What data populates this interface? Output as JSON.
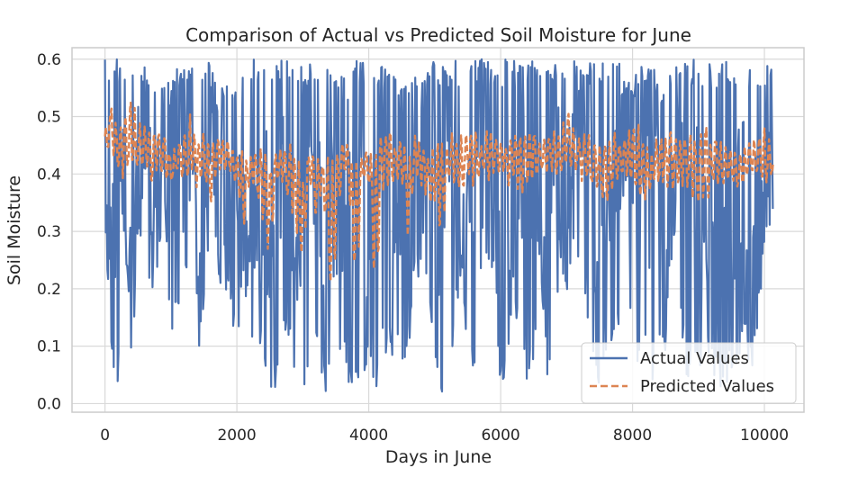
{
  "chart_data": {
    "type": "line",
    "title": "Comparison of Actual vs Predicted Soil Moisture for June",
    "xlabel": "Days in June",
    "ylabel": "Soil Moisture",
    "xlim": [
      -500,
      10600
    ],
    "ylim": [
      -0.015,
      0.62
    ],
    "xticks": [
      0,
      2000,
      4000,
      6000,
      8000,
      10000
    ],
    "xtick_labels": [
      "0",
      "2000",
      "4000",
      "6000",
      "8000",
      "10000"
    ],
    "yticks": [
      0.0,
      0.1,
      0.2,
      0.3,
      0.4,
      0.5,
      0.6
    ],
    "ytick_labels": [
      "0.0",
      "0.1",
      "0.2",
      "0.3",
      "0.4",
      "0.5",
      "0.6"
    ],
    "grid": true,
    "legend_position": "lower-right",
    "series": [
      {
        "name": "Actual Values",
        "color": "#4c72b0",
        "style": "solid",
        "x": [
          0,
          100,
          200,
          300,
          400,
          500,
          600,
          700,
          800,
          900,
          1000,
          1100,
          1200,
          1300,
          1400,
          1500,
          1600,
          1700,
          1800,
          1900,
          2000,
          2100,
          2200,
          2300,
          2400,
          2500,
          2600,
          2700,
          2800,
          2900,
          3000,
          3100,
          3200,
          3300,
          3400,
          3500,
          3600,
          3700,
          3800,
          3900,
          4000,
          4100,
          4200,
          4300,
          4400,
          4500,
          4600,
          4700,
          4800,
          4900,
          5000,
          5100,
          5200,
          5300,
          5400,
          5500,
          5600,
          5700,
          5800,
          5900,
          6000,
          6100,
          6200,
          6300,
          6400,
          6500,
          6600,
          6700,
          6800,
          6900,
          7000,
          7100,
          7200,
          7300,
          7400,
          7500,
          7600,
          7700,
          7800,
          7900,
          8000,
          8100,
          8200,
          8300,
          8400,
          8500,
          8600,
          8700,
          8800,
          8900,
          9000,
          9100,
          9200,
          9300,
          9400,
          9500,
          9600,
          9700,
          9800,
          9900,
          10000,
          10100
        ],
        "min": [
          0.29,
          0.04,
          0.02,
          0.29,
          0.04,
          0.26,
          0.25,
          0.19,
          0.22,
          0.34,
          0.12,
          0.17,
          0.17,
          0.32,
          0.03,
          0.16,
          0.3,
          0.25,
          0.15,
          0.19,
          0.06,
          0.23,
          0.11,
          0.09,
          0.07,
          0.03,
          0.02,
          0.11,
          0.09,
          0.02,
          0.02,
          0.07,
          0.08,
          0.01,
          0.01,
          0.03,
          0.1,
          0.01,
          0.01,
          0.04,
          0.04,
          0.01,
          0.09,
          0.07,
          0.09,
          0.07,
          0.09,
          0.21,
          0.19,
          0.19,
          0.09,
          0.02,
          0.02,
          0.11,
          0.23,
          0.09,
          0.03,
          0.04,
          0.24,
          0.23,
          0.02,
          0.07,
          0.17,
          0.11,
          0.03,
          0.08,
          0.23,
          0.03,
          0.09,
          0.25,
          0.17,
          0.25,
          0.11,
          0.15,
          0.04,
          0.02,
          0.06,
          0.08,
          0.13,
          0.29,
          0.06,
          0.06,
          0.06,
          0.04,
          0.08,
          0.09,
          0.26,
          0.23,
          0.03,
          0.04,
          0.03,
          0.1,
          0.05,
          0.03,
          0.02,
          0.05,
          0.03,
          0.12,
          0.04,
          0.14,
          0.25,
          0.3
        ],
        "max": [
          0.6,
          0.6,
          0.6,
          0.6,
          0.59,
          0.6,
          0.6,
          0.6,
          0.58,
          0.58,
          0.56,
          0.59,
          0.6,
          0.6,
          0.6,
          0.59,
          0.6,
          0.55,
          0.58,
          0.6,
          0.56,
          0.6,
          0.6,
          0.6,
          0.6,
          0.6,
          0.6,
          0.6,
          0.6,
          0.58,
          0.6,
          0.6,
          0.6,
          0.59,
          0.6,
          0.59,
          0.6,
          0.56,
          0.6,
          0.6,
          0.6,
          0.59,
          0.6,
          0.6,
          0.58,
          0.57,
          0.59,
          0.6,
          0.6,
          0.59,
          0.6,
          0.6,
          0.6,
          0.6,
          0.6,
          0.58,
          0.6,
          0.6,
          0.6,
          0.6,
          0.6,
          0.6,
          0.6,
          0.6,
          0.6,
          0.6,
          0.59,
          0.6,
          0.6,
          0.6,
          0.6,
          0.6,
          0.58,
          0.6,
          0.6,
          0.59,
          0.6,
          0.6,
          0.6,
          0.56,
          0.57,
          0.58,
          0.6,
          0.6,
          0.55,
          0.6,
          0.6,
          0.6,
          0.6,
          0.6,
          0.6,
          0.6,
          0.6,
          0.6,
          0.6,
          0.6,
          0.6,
          0.6,
          0.6,
          0.6,
          0.6,
          0.6
        ]
      },
      {
        "name": "Predicted Values",
        "color": "#dd8452",
        "style": "dashed",
        "x": [
          0,
          100,
          200,
          300,
          400,
          500,
          600,
          700,
          800,
          900,
          1000,
          1100,
          1200,
          1300,
          1400,
          1500,
          1600,
          1700,
          1800,
          1900,
          2000,
          2100,
          2200,
          2300,
          2400,
          2500,
          2600,
          2700,
          2800,
          2900,
          3000,
          3100,
          3200,
          3300,
          3400,
          3500,
          3600,
          3700,
          3800,
          3900,
          4000,
          4100,
          4200,
          4300,
          4400,
          4500,
          4600,
          4700,
          4800,
          4900,
          5000,
          5100,
          5200,
          5300,
          5400,
          5500,
          5600,
          5700,
          5800,
          5900,
          6000,
          6100,
          6200,
          6300,
          6400,
          6500,
          6600,
          6700,
          6800,
          6900,
          7000,
          7100,
          7200,
          7300,
          7400,
          7500,
          7600,
          7700,
          7800,
          7900,
          8000,
          8100,
          8200,
          8300,
          8400,
          8500,
          8600,
          8700,
          8800,
          8900,
          9000,
          9100,
          9200,
          9300,
          9400,
          9500,
          9600,
          9700,
          9800,
          9900,
          10000,
          10100
        ],
        "min": [
          0.43,
          0.44,
          0.39,
          0.38,
          0.4,
          0.4,
          0.41,
          0.38,
          0.41,
          0.4,
          0.37,
          0.4,
          0.38,
          0.39,
          0.37,
          0.39,
          0.34,
          0.4,
          0.4,
          0.4,
          0.38,
          0.3,
          0.38,
          0.36,
          0.3,
          0.25,
          0.39,
          0.38,
          0.34,
          0.29,
          0.23,
          0.39,
          0.31,
          0.38,
          0.17,
          0.24,
          0.4,
          0.38,
          0.14,
          0.39,
          0.38,
          0.15,
          0.35,
          0.38,
          0.37,
          0.38,
          0.28,
          0.4,
          0.37,
          0.35,
          0.33,
          0.28,
          0.37,
          0.38,
          0.35,
          0.4,
          0.36,
          0.41,
          0.38,
          0.4,
          0.4,
          0.38,
          0.38,
          0.36,
          0.37,
          0.39,
          0.4,
          0.4,
          0.4,
          0.39,
          0.4,
          0.4,
          0.39,
          0.38,
          0.37,
          0.35,
          0.33,
          0.37,
          0.38,
          0.39,
          0.36,
          0.34,
          0.35,
          0.37,
          0.38,
          0.37,
          0.36,
          0.36,
          0.38,
          0.35,
          0.34,
          0.34,
          0.37,
          0.37,
          0.38,
          0.38,
          0.37,
          0.38,
          0.4,
          0.39,
          0.38,
          0.39
        ],
        "max": [
          0.48,
          0.53,
          0.49,
          0.51,
          0.54,
          0.49,
          0.5,
          0.47,
          0.49,
          0.48,
          0.44,
          0.46,
          0.48,
          0.51,
          0.46,
          0.48,
          0.47,
          0.46,
          0.47,
          0.45,
          0.44,
          0.45,
          0.43,
          0.46,
          0.45,
          0.42,
          0.45,
          0.44,
          0.46,
          0.43,
          0.42,
          0.44,
          0.43,
          0.42,
          0.44,
          0.45,
          0.46,
          0.45,
          0.43,
          0.44,
          0.45,
          0.44,
          0.47,
          0.49,
          0.46,
          0.47,
          0.44,
          0.48,
          0.46,
          0.45,
          0.46,
          0.49,
          0.46,
          0.48,
          0.47,
          0.48,
          0.49,
          0.45,
          0.48,
          0.47,
          0.46,
          0.46,
          0.48,
          0.47,
          0.48,
          0.48,
          0.46,
          0.47,
          0.49,
          0.47,
          0.52,
          0.49,
          0.46,
          0.48,
          0.46,
          0.46,
          0.47,
          0.48,
          0.46,
          0.47,
          0.5,
          0.49,
          0.45,
          0.45,
          0.47,
          0.47,
          0.49,
          0.48,
          0.47,
          0.49,
          0.47,
          0.5,
          0.46,
          0.47,
          0.45,
          0.45,
          0.44,
          0.45,
          0.46,
          0.47,
          0.49,
          0.45
        ]
      }
    ]
  }
}
